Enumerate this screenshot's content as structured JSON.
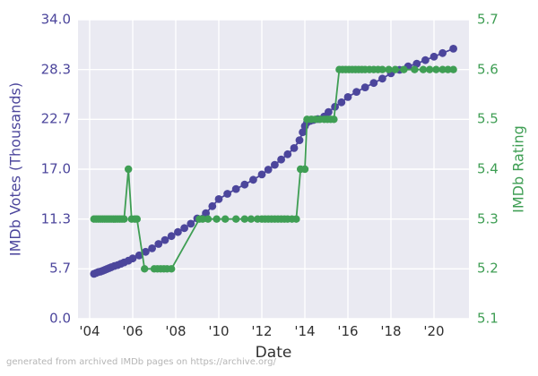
{
  "caption": "generated from archived IMDb pages on https://archive.org/",
  "colors": {
    "votes_series": "#4c469c",
    "rating_series": "#3f9e54",
    "plot_background": "#eaeaf2",
    "gridline": "#ffffff",
    "x_tick_text": "#303030",
    "caption_text": "#b5b5b5"
  },
  "chart_data": {
    "type": "line",
    "title": "",
    "xlabel": "Date",
    "ylabel_left": "IMDb Votes (Thousands)",
    "ylabel_right": "IMDb Rating",
    "x_axis": {
      "tick_labels": [
        "'04",
        "'06",
        "'08",
        "'10",
        "'12",
        "'14",
        "'16",
        "'18",
        "'20"
      ],
      "tick_years": [
        2004,
        2006,
        2008,
        2010,
        2012,
        2014,
        2016,
        2018,
        2020
      ],
      "range_years": [
        2003.45,
        2021.6
      ]
    },
    "left_axis": {
      "tick_labels": [
        "34.0",
        "28.3",
        "22.7",
        "17.0",
        "11.3",
        "5.7",
        "0.0"
      ],
      "tick_values": [
        34.0,
        28.33,
        22.67,
        17.0,
        11.33,
        5.67,
        0.0
      ],
      "range": [
        0.0,
        34.0
      ]
    },
    "right_axis": {
      "tick_labels": [
        "5.7",
        "5.6",
        "5.5",
        "5.4",
        "5.3",
        "5.2",
        "5.1"
      ],
      "tick_values": [
        5.7,
        5.6,
        5.5,
        5.4,
        5.3,
        5.2,
        5.1
      ],
      "range": [
        5.1,
        5.7
      ]
    },
    "grid": true,
    "legend": false,
    "series": [
      {
        "name": "IMDb Votes (Thousands)",
        "axis": "left",
        "marker_radius": 4.4,
        "points": [
          [
            2004.2,
            5.1
          ],
          [
            2004.3,
            5.2
          ],
          [
            2004.4,
            5.3
          ],
          [
            2004.5,
            5.35
          ],
          [
            2004.6,
            5.45
          ],
          [
            2004.7,
            5.55
          ],
          [
            2004.8,
            5.65
          ],
          [
            2004.9,
            5.75
          ],
          [
            2005.0,
            5.85
          ],
          [
            2005.15,
            6.0
          ],
          [
            2005.3,
            6.1
          ],
          [
            2005.45,
            6.25
          ],
          [
            2005.6,
            6.4
          ],
          [
            2005.8,
            6.6
          ],
          [
            2006.0,
            6.85
          ],
          [
            2006.3,
            7.2
          ],
          [
            2006.6,
            7.6
          ],
          [
            2006.9,
            8.0
          ],
          [
            2007.2,
            8.5
          ],
          [
            2007.5,
            8.95
          ],
          [
            2007.8,
            9.4
          ],
          [
            2008.1,
            9.85
          ],
          [
            2008.4,
            10.3
          ],
          [
            2008.7,
            10.8
          ],
          [
            2009.0,
            11.4
          ],
          [
            2009.4,
            12.0
          ],
          [
            2009.7,
            12.8
          ],
          [
            2010.0,
            13.6
          ],
          [
            2010.4,
            14.2
          ],
          [
            2010.8,
            14.75
          ],
          [
            2011.2,
            15.25
          ],
          [
            2011.6,
            15.8
          ],
          [
            2012.0,
            16.4
          ],
          [
            2012.3,
            16.95
          ],
          [
            2012.6,
            17.5
          ],
          [
            2012.9,
            18.1
          ],
          [
            2013.2,
            18.7
          ],
          [
            2013.5,
            19.4
          ],
          [
            2013.75,
            20.3
          ],
          [
            2013.9,
            21.2
          ],
          [
            2014.0,
            21.9
          ],
          [
            2014.1,
            22.3
          ],
          [
            2014.25,
            22.5
          ],
          [
            2014.4,
            22.6
          ],
          [
            2014.6,
            22.7
          ],
          [
            2014.9,
            23.0
          ],
          [
            2015.1,
            23.5
          ],
          [
            2015.4,
            24.1
          ],
          [
            2015.7,
            24.6
          ],
          [
            2016.0,
            25.2
          ],
          [
            2016.4,
            25.8
          ],
          [
            2016.8,
            26.3
          ],
          [
            2017.2,
            26.8
          ],
          [
            2017.6,
            27.3
          ],
          [
            2018.0,
            27.9
          ],
          [
            2018.4,
            28.3
          ],
          [
            2018.8,
            28.7
          ],
          [
            2019.2,
            29.0
          ],
          [
            2019.6,
            29.4
          ],
          [
            2020.0,
            29.8
          ],
          [
            2020.4,
            30.2
          ],
          [
            2020.9,
            30.7
          ]
        ]
      },
      {
        "name": "IMDb Rating",
        "axis": "right",
        "marker_radius": 4.2,
        "points": [
          [
            2004.2,
            5.3
          ],
          [
            2004.3,
            5.3
          ],
          [
            2004.4,
            5.3
          ],
          [
            2004.5,
            5.3
          ],
          [
            2004.6,
            5.3
          ],
          [
            2004.7,
            5.3
          ],
          [
            2004.8,
            5.3
          ],
          [
            2004.9,
            5.3
          ],
          [
            2005.0,
            5.3
          ],
          [
            2005.1,
            5.3
          ],
          [
            2005.2,
            5.3
          ],
          [
            2005.3,
            5.3
          ],
          [
            2005.4,
            5.3
          ],
          [
            2005.5,
            5.3
          ],
          [
            2005.6,
            5.3
          ],
          [
            2005.8,
            5.4
          ],
          [
            2005.95,
            5.3
          ],
          [
            2006.1,
            5.3
          ],
          [
            2006.2,
            5.3
          ],
          [
            2006.55,
            5.2
          ],
          [
            2007.0,
            5.2
          ],
          [
            2007.15,
            5.2
          ],
          [
            2007.3,
            5.2
          ],
          [
            2007.45,
            5.2
          ],
          [
            2007.6,
            5.2
          ],
          [
            2007.8,
            5.2
          ],
          [
            2009.1,
            5.3
          ],
          [
            2009.25,
            5.3
          ],
          [
            2009.5,
            5.3
          ],
          [
            2009.9,
            5.3
          ],
          [
            2010.3,
            5.3
          ],
          [
            2010.8,
            5.3
          ],
          [
            2011.2,
            5.3
          ],
          [
            2011.5,
            5.3
          ],
          [
            2011.8,
            5.3
          ],
          [
            2012.0,
            5.3
          ],
          [
            2012.15,
            5.3
          ],
          [
            2012.3,
            5.3
          ],
          [
            2012.45,
            5.3
          ],
          [
            2012.6,
            5.3
          ],
          [
            2012.75,
            5.3
          ],
          [
            2012.9,
            5.3
          ],
          [
            2013.05,
            5.3
          ],
          [
            2013.2,
            5.3
          ],
          [
            2013.4,
            5.3
          ],
          [
            2013.6,
            5.3
          ],
          [
            2013.8,
            5.4
          ],
          [
            2014.0,
            5.4
          ],
          [
            2014.1,
            5.5
          ],
          [
            2014.3,
            5.5
          ],
          [
            2014.5,
            5.5
          ],
          [
            2014.7,
            5.5
          ],
          [
            2014.9,
            5.5
          ],
          [
            2015.05,
            5.5
          ],
          [
            2015.2,
            5.5
          ],
          [
            2015.35,
            5.5
          ],
          [
            2015.6,
            5.6
          ],
          [
            2015.75,
            5.6
          ],
          [
            2015.9,
            5.6
          ],
          [
            2016.05,
            5.6
          ],
          [
            2016.2,
            5.6
          ],
          [
            2016.35,
            5.6
          ],
          [
            2016.5,
            5.6
          ],
          [
            2016.65,
            5.6
          ],
          [
            2016.8,
            5.6
          ],
          [
            2017.0,
            5.6
          ],
          [
            2017.2,
            5.6
          ],
          [
            2017.4,
            5.6
          ],
          [
            2017.6,
            5.6
          ],
          [
            2017.9,
            5.6
          ],
          [
            2018.2,
            5.6
          ],
          [
            2018.6,
            5.6
          ],
          [
            2019.1,
            5.6
          ],
          [
            2019.5,
            5.6
          ],
          [
            2019.8,
            5.6
          ],
          [
            2020.1,
            5.6
          ],
          [
            2020.4,
            5.6
          ],
          [
            2020.65,
            5.6
          ],
          [
            2020.9,
            5.6
          ]
        ]
      }
    ]
  }
}
